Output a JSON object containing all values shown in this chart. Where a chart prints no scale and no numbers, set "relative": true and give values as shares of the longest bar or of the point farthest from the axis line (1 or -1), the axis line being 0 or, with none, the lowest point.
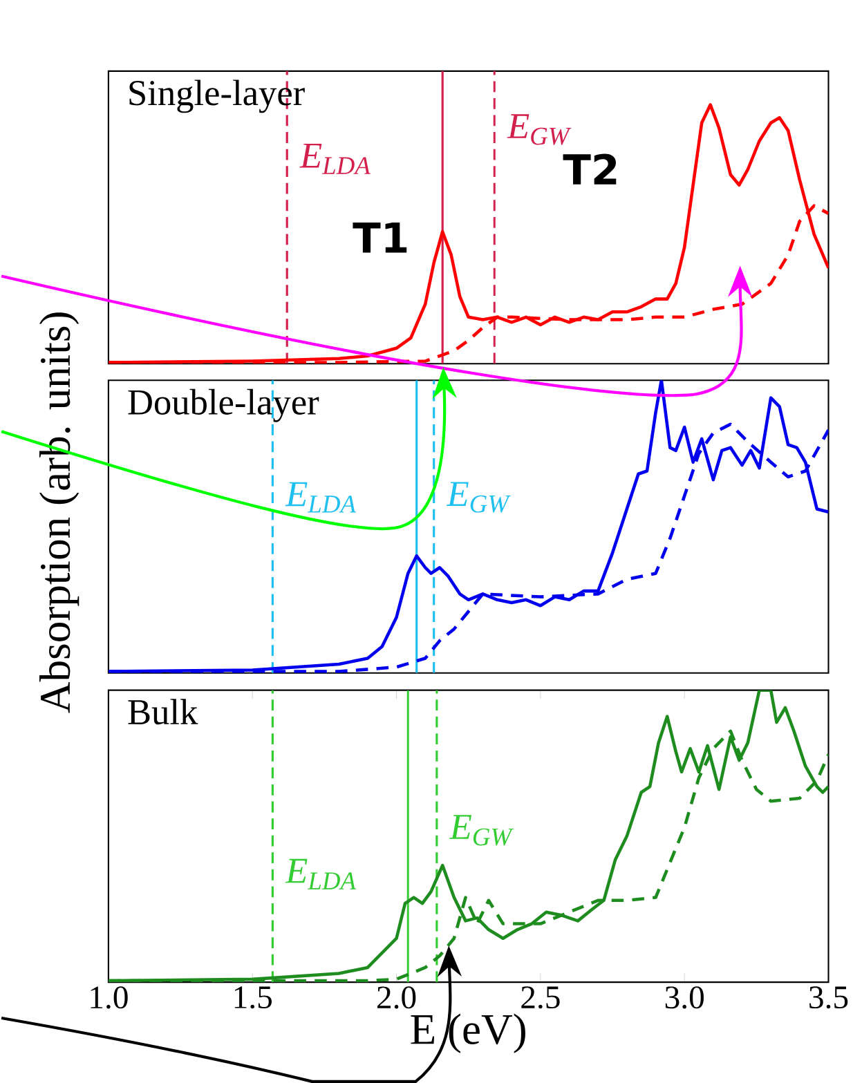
{
  "chart_data": [
    {
      "type": "line",
      "title": "Single-layer",
      "relative": true,
      "xlim": [
        1.0,
        3.5
      ],
      "tick_labels": false,
      "series": [
        {
          "color": "#ff0000",
          "line_style": "solid",
          "x": [
            1.0,
            1.5,
            1.8,
            1.9,
            2.0,
            2.05,
            2.1,
            2.13,
            2.16,
            2.19,
            2.22,
            2.25,
            2.3,
            2.35,
            2.4,
            2.45,
            2.5,
            2.55,
            2.6,
            2.65,
            2.7,
            2.75,
            2.8,
            2.85,
            2.9,
            2.94,
            2.97,
            3.0,
            3.03,
            3.06,
            3.09,
            3.12,
            3.16,
            3.19,
            3.22,
            3.26,
            3.3,
            3.33,
            3.36,
            3.4,
            3.45,
            3.5
          ],
          "values": [
            0.005,
            0.01,
            0.02,
            0.03,
            0.06,
            0.1,
            0.23,
            0.39,
            0.51,
            0.42,
            0.26,
            0.18,
            0.17,
            0.18,
            0.16,
            0.18,
            0.15,
            0.18,
            0.16,
            0.18,
            0.17,
            0.2,
            0.2,
            0.22,
            0.25,
            0.25,
            0.31,
            0.45,
            0.69,
            0.93,
            1.0,
            0.91,
            0.73,
            0.69,
            0.75,
            0.86,
            0.93,
            0.95,
            0.9,
            0.71,
            0.5,
            0.37
          ]
        },
        {
          "color": "#ff0000",
          "line_style": "dashed",
          "x": [
            1.0,
            1.8,
            2.1,
            2.2,
            2.25,
            2.3,
            2.35,
            2.4,
            2.6,
            2.8,
            2.9,
            3.0,
            3.1,
            3.2,
            3.3,
            3.36,
            3.4,
            3.45,
            3.5
          ],
          "values": [
            0.005,
            0.005,
            0.01,
            0.05,
            0.09,
            0.14,
            0.18,
            0.18,
            0.17,
            0.17,
            0.18,
            0.18,
            0.21,
            0.23,
            0.31,
            0.42,
            0.55,
            0.61,
            0.58
          ]
        }
      ],
      "ref_lines": [
        {
          "axis": "x",
          "value": 1.62,
          "label": "*E*$_{LDA}$",
          "color": "#d21f4b",
          "line_style": "dashed"
        },
        {
          "axis": "x",
          "value": 2.16,
          "color": "#d21f4b",
          "line_style": "solid"
        },
        {
          "axis": "x",
          "value": 2.34,
          "label": "*E*$_{GW}$",
          "color": "#d21f4b",
          "line_style": "dashed"
        }
      ],
      "annotations": [
        {
          "text": "T1",
          "x": 2.16,
          "y": 0.51
        },
        {
          "text": "T2",
          "x": 3.09,
          "y": 1.0
        }
      ]
    },
    {
      "type": "line",
      "title": "Double-layer",
      "ylabel": "Absorption (arb. units)",
      "relative": true,
      "xlim": [
        1.0,
        3.5
      ],
      "tick_labels": false,
      "series": [
        {
          "color": "#0000ee",
          "line_style": "solid",
          "x": [
            1.0,
            1.5,
            1.8,
            1.9,
            1.95,
            2.0,
            2.04,
            2.07,
            2.1,
            2.12,
            2.15,
            2.18,
            2.22,
            2.25,
            2.3,
            2.35,
            2.4,
            2.45,
            2.5,
            2.55,
            2.6,
            2.65,
            2.7,
            2.75,
            2.8,
            2.84,
            2.87,
            2.9,
            2.92,
            2.95,
            2.97,
            3.0,
            3.03,
            3.06,
            3.1,
            3.13,
            3.16,
            3.2,
            3.23,
            3.26,
            3.3,
            3.33,
            3.36,
            3.39,
            3.42,
            3.46,
            3.5
          ],
          "values": [
            0.005,
            0.01,
            0.03,
            0.05,
            0.09,
            0.19,
            0.34,
            0.4,
            0.36,
            0.34,
            0.36,
            0.33,
            0.27,
            0.25,
            0.27,
            0.25,
            0.24,
            0.25,
            0.23,
            0.26,
            0.25,
            0.28,
            0.28,
            0.41,
            0.56,
            0.68,
            0.69,
            0.89,
            1.0,
            0.77,
            0.76,
            0.84,
            0.72,
            0.8,
            0.66,
            0.76,
            0.77,
            0.71,
            0.76,
            0.7,
            0.94,
            0.91,
            0.78,
            0.77,
            0.72,
            0.56,
            0.55
          ]
        },
        {
          "color": "#0000ee",
          "line_style": "dashed",
          "x": [
            1.0,
            1.8,
            2.0,
            2.1,
            2.15,
            2.2,
            2.25,
            2.3,
            2.5,
            2.7,
            2.8,
            2.9,
            2.95,
            3.05,
            3.1,
            3.16,
            3.22,
            3.3,
            3.36,
            3.42,
            3.5
          ],
          "values": [
            0.005,
            0.005,
            0.02,
            0.05,
            0.11,
            0.15,
            0.21,
            0.27,
            0.26,
            0.27,
            0.32,
            0.34,
            0.46,
            0.75,
            0.82,
            0.85,
            0.79,
            0.72,
            0.67,
            0.69,
            0.83
          ]
        }
      ],
      "ref_lines": [
        {
          "axis": "x",
          "value": 1.57,
          "label": "*E*$_{LDA}$",
          "color": "#1ec0f0",
          "line_style": "dashed"
        },
        {
          "axis": "x",
          "value": 2.07,
          "color": "#1ec0f0",
          "line_style": "solid"
        },
        {
          "axis": "x",
          "value": 2.13,
          "label": "*E*$_{GW}$",
          "color": "#1ec0f0",
          "line_style": "dashed"
        }
      ]
    },
    {
      "type": "line",
      "title": "Bulk",
      "xlabel": "E (eV)",
      "relative": true,
      "xlim": [
        1.0,
        3.5
      ],
      "tick_labels": "x",
      "xticks": [
        {
          "value": 1.0,
          "label": "1.0"
        },
        {
          "value": 1.5,
          "label": "1.5"
        },
        {
          "value": 2.0,
          "label": "2.0"
        },
        {
          "value": 2.5,
          "label": "2.5"
        },
        {
          "value": 3.0,
          "label": "3.0"
        },
        {
          "value": 3.5,
          "label": "3.5"
        }
      ],
      "series": [
        {
          "color": "#1e8c1e",
          "line_style": "solid",
          "x": [
            1.0,
            1.5,
            1.8,
            1.9,
            2.0,
            2.03,
            2.06,
            2.09,
            2.12,
            2.16,
            2.2,
            2.24,
            2.28,
            2.32,
            2.37,
            2.42,
            2.47,
            2.52,
            2.57,
            2.63,
            2.68,
            2.72,
            2.76,
            2.8,
            2.85,
            2.88,
            2.91,
            2.94,
            2.97,
            2.99,
            3.02,
            3.05,
            3.08,
            3.12,
            3.16,
            3.19,
            3.22,
            3.26,
            3.3,
            3.32,
            3.35,
            3.38,
            3.42,
            3.46,
            3.48,
            3.5
          ],
          "values": [
            0.005,
            0.01,
            0.03,
            0.05,
            0.15,
            0.27,
            0.29,
            0.27,
            0.31,
            0.4,
            0.29,
            0.21,
            0.22,
            0.18,
            0.15,
            0.18,
            0.2,
            0.24,
            0.23,
            0.21,
            0.25,
            0.28,
            0.42,
            0.5,
            0.65,
            0.67,
            0.82,
            0.91,
            0.79,
            0.72,
            0.8,
            0.72,
            0.81,
            0.66,
            0.84,
            0.76,
            0.82,
            1.0,
            1.0,
            0.89,
            0.94,
            0.86,
            0.74,
            0.67,
            0.65,
            0.67
          ]
        },
        {
          "color": "#1e8c1e",
          "line_style": "dashed",
          "x": [
            1.0,
            1.9,
            2.0,
            2.1,
            2.15,
            2.2,
            2.24,
            2.28,
            2.32,
            2.37,
            2.42,
            2.5,
            2.6,
            2.7,
            2.8,
            2.9,
            2.95,
            3.0,
            3.05,
            3.1,
            3.16,
            3.2,
            3.25,
            3.3,
            3.4,
            3.46,
            3.5
          ],
          "values": [
            0.005,
            0.005,
            0.01,
            0.05,
            0.09,
            0.15,
            0.29,
            0.2,
            0.28,
            0.2,
            0.2,
            0.2,
            0.24,
            0.28,
            0.28,
            0.29,
            0.41,
            0.53,
            0.7,
            0.8,
            0.86,
            0.76,
            0.66,
            0.62,
            0.63,
            0.69,
            0.78
          ]
        }
      ],
      "ref_lines": [
        {
          "axis": "x",
          "value": 1.57,
          "label": "*E*$_{LDA}$",
          "color": "#33cc33",
          "line_style": "dashed"
        },
        {
          "axis": "x",
          "value": 2.04,
          "color": "#33cc33",
          "line_style": "solid"
        },
        {
          "axis": "x",
          "value": 2.14,
          "label": "*E*$_{GW}$",
          "color": "#33cc33",
          "line_style": "dashed"
        }
      ]
    }
  ]
}
